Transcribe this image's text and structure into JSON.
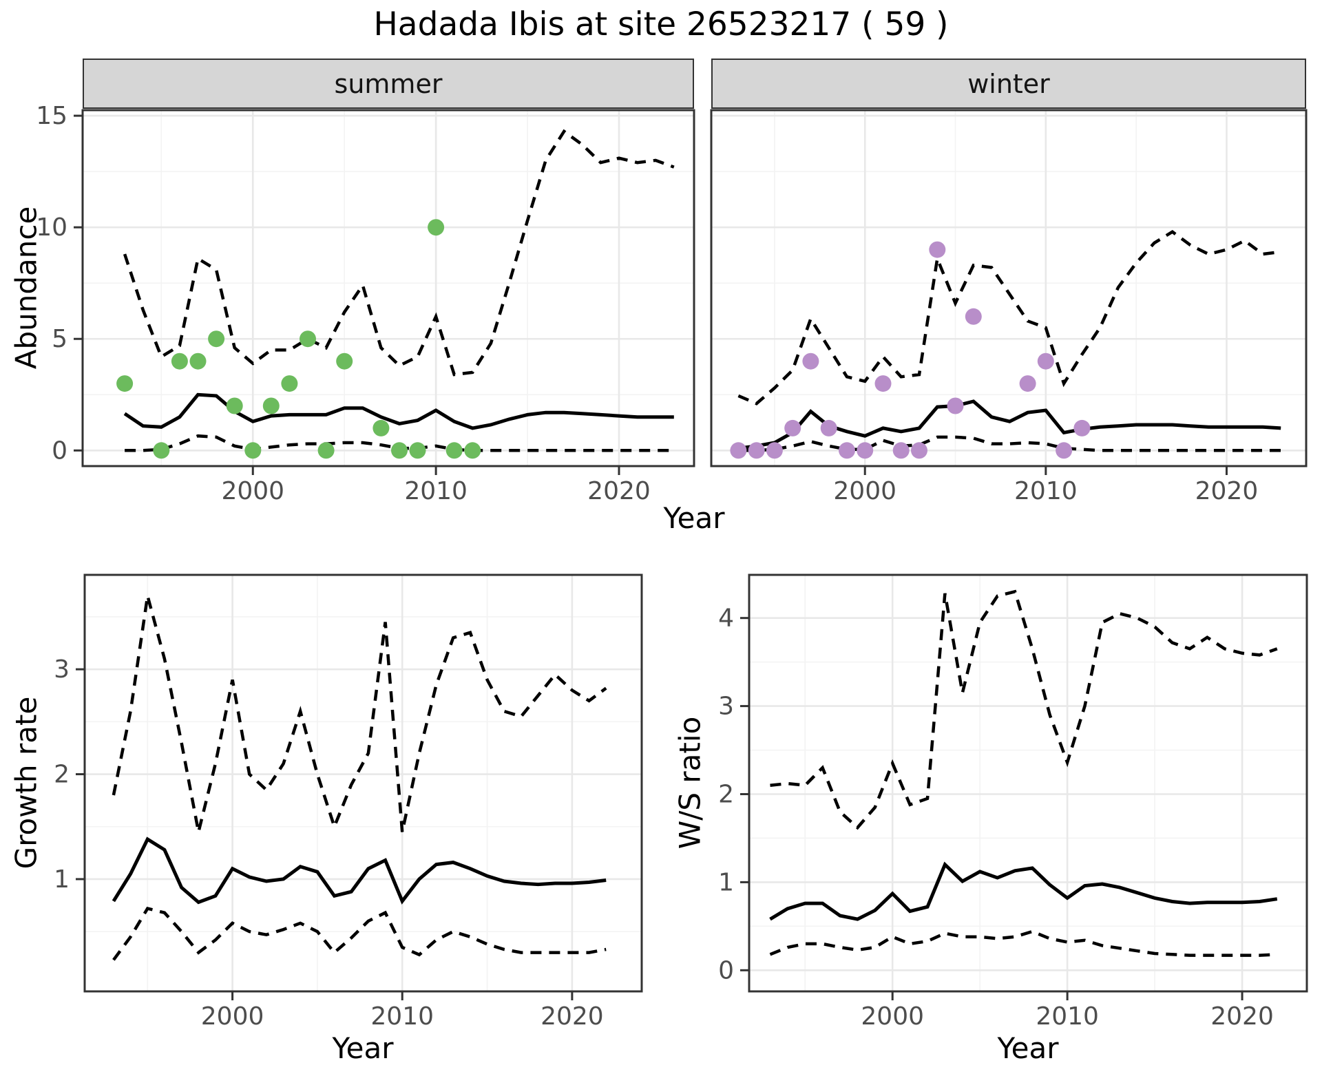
{
  "title": "Hadada Ibis at site 26523217 ( 59 )",
  "colors": {
    "summer_point": "#6cbb5d",
    "winter_point": "#b88ec9",
    "line": "#000000",
    "panel_border": "#333333",
    "grid_major": "#e8e8e8",
    "grid_minor": "#f3f3f3",
    "strip_background": "#d6d6d6",
    "tick_label": "#4d4d4d",
    "title_text": "#000000"
  },
  "top_row": {
    "facets": [
      "summer",
      "winter"
    ],
    "ylabel": "Abundance",
    "xlabel": "Year",
    "yticks": [
      0,
      5,
      10,
      15
    ],
    "xticks": [
      2000,
      2010,
      2020
    ]
  },
  "bottom_left": {
    "ylabel": "Growth rate",
    "xlabel": "Year",
    "yticks": [
      1,
      2,
      3
    ],
    "xticks": [
      2000,
      2010,
      2020
    ]
  },
  "bottom_right": {
    "ylabel": "W/S ratio",
    "xlabel": "Year",
    "yticks": [
      0,
      1,
      2,
      3,
      4
    ],
    "xticks": [
      2000,
      2010,
      2020
    ]
  },
  "chart_data": [
    {
      "id": "abundance-summer",
      "type": "line",
      "facet": "summer",
      "title": "Hadada Ibis at site 26523217 ( 59 )",
      "xlabel": "Year",
      "ylabel": "Abundance",
      "ylim": [
        0,
        15
      ],
      "years": [
        1993,
        1994,
        1995,
        1996,
        1997,
        1998,
        1999,
        2000,
        2001,
        2002,
        2003,
        2004,
        2005,
        2006,
        2007,
        2008,
        2009,
        2010,
        2011,
        2012,
        2013,
        2014,
        2015,
        2016,
        2017,
        2018,
        2019,
        2020,
        2021,
        2022,
        2023
      ],
      "series": [
        {
          "name": "median",
          "style": "solid",
          "values": [
            1.65,
            1.1,
            1.05,
            1.5,
            2.5,
            2.45,
            1.75,
            1.3,
            1.55,
            1.6,
            1.6,
            1.6,
            1.9,
            1.9,
            1.5,
            1.2,
            1.35,
            1.8,
            1.3,
            1.0,
            1.15,
            1.4,
            1.6,
            1.7,
            1.7,
            1.65,
            1.6,
            1.55,
            1.5,
            1.5,
            1.5
          ]
        },
        {
          "name": "ci_upper",
          "style": "dashed",
          "values": [
            8.8,
            6.3,
            4.2,
            4.7,
            8.6,
            8.1,
            4.6,
            3.9,
            4.5,
            4.5,
            5.0,
            4.6,
            6.2,
            7.4,
            4.6,
            3.8,
            4.2,
            6.0,
            3.4,
            3.5,
            4.8,
            7.5,
            10.3,
            13.0,
            14.3,
            13.7,
            12.9,
            13.1,
            12.9,
            13.0,
            12.7
          ]
        },
        {
          "name": "ci_lower",
          "style": "dashed",
          "values": [
            0,
            0,
            0.05,
            0.3,
            0.65,
            0.6,
            0.2,
            0.05,
            0.15,
            0.25,
            0.3,
            0.3,
            0.35,
            0.35,
            0.25,
            0.1,
            0.1,
            0.2,
            0.05,
            0,
            0,
            0,
            0,
            0,
            0,
            0,
            0,
            0,
            0,
            0,
            0
          ]
        }
      ],
      "points": {
        "name": "observed-summer",
        "color_key": "summer_point",
        "years": [
          1993,
          1995,
          1996,
          1997,
          1998,
          1999,
          2000,
          2001,
          2002,
          2003,
          2004,
          2005,
          2007,
          2008,
          2009,
          2010,
          2011,
          2012
        ],
        "values": [
          3,
          0,
          4,
          4,
          5,
          2,
          0,
          2,
          3,
          5,
          0,
          4,
          1,
          0,
          0,
          10,
          0,
          0
        ]
      }
    },
    {
      "id": "abundance-winter",
      "type": "line",
      "facet": "winter",
      "xlabel": "Year",
      "ylabel": "Abundance",
      "ylim": [
        0,
        15
      ],
      "years": [
        1993,
        1994,
        1995,
        1996,
        1997,
        1998,
        1999,
        2000,
        2001,
        2002,
        2003,
        2004,
        2005,
        2006,
        2007,
        2008,
        2009,
        2010,
        2011,
        2012,
        2013,
        2014,
        2015,
        2016,
        2017,
        2018,
        2019,
        2020,
        2021,
        2022,
        2023
      ],
      "series": [
        {
          "name": "median",
          "style": "solid",
          "values": [
            0.1,
            0.2,
            0.35,
            0.8,
            1.75,
            1.1,
            0.85,
            0.65,
            1.0,
            0.85,
            1.0,
            1.95,
            2.0,
            2.2,
            1.5,
            1.3,
            1.7,
            1.8,
            0.8,
            0.95,
            1.05,
            1.1,
            1.15,
            1.15,
            1.15,
            1.1,
            1.05,
            1.05,
            1.05,
            1.05,
            1.0
          ]
        },
        {
          "name": "ci_upper",
          "style": "dashed",
          "values": [
            2.45,
            2.1,
            2.8,
            3.6,
            5.9,
            4.6,
            3.3,
            3.1,
            4.2,
            3.3,
            3.4,
            8.6,
            6.6,
            8.3,
            8.2,
            7.0,
            5.8,
            5.5,
            3.0,
            4.3,
            5.5,
            7.3,
            8.4,
            9.3,
            9.8,
            9.2,
            8.8,
            9.0,
            9.4,
            8.8,
            8.9
          ]
        },
        {
          "name": "ci_lower",
          "style": "dashed",
          "values": [
            0,
            0,
            0.05,
            0.2,
            0.4,
            0.2,
            0.05,
            0.05,
            0.45,
            0.2,
            0.25,
            0.6,
            0.6,
            0.55,
            0.3,
            0.3,
            0.35,
            0.3,
            0.1,
            0.05,
            0,
            0,
            0,
            0,
            0,
            0,
            0,
            0,
            0,
            0,
            0
          ]
        }
      ],
      "points": {
        "name": "observed-winter",
        "color_key": "winter_point",
        "years": [
          1993,
          1994,
          1995,
          1996,
          1997,
          1998,
          1999,
          2000,
          2001,
          2002,
          2003,
          2004,
          2005,
          2006,
          2009,
          2010,
          2011,
          2012
        ],
        "values": [
          0,
          0,
          0,
          1,
          4,
          1,
          0,
          0,
          3,
          0,
          0,
          9,
          2,
          6,
          3,
          4,
          0,
          1
        ]
      }
    },
    {
      "id": "growth-rate",
      "type": "line",
      "xlabel": "Year",
      "ylabel": "Growth rate",
      "ylim": [
        0,
        3.9
      ],
      "years": [
        1993,
        1994,
        1995,
        1996,
        1997,
        1998,
        1999,
        2000,
        2001,
        2002,
        2003,
        2004,
        2005,
        2006,
        2007,
        2008,
        2009,
        2010,
        2011,
        2012,
        2013,
        2014,
        2015,
        2016,
        2017,
        2018,
        2019,
        2020,
        2021,
        2022
      ],
      "series": [
        {
          "name": "median",
          "style": "solid",
          "values": [
            0.79,
            1.05,
            1.38,
            1.28,
            0.92,
            0.78,
            0.84,
            1.1,
            1.02,
            0.98,
            1.0,
            1.12,
            1.07,
            0.84,
            0.88,
            1.1,
            1.18,
            0.79,
            1.0,
            1.14,
            1.16,
            1.1,
            1.03,
            0.98,
            0.96,
            0.95,
            0.96,
            0.96,
            0.97,
            0.99
          ]
        },
        {
          "name": "ci_upper",
          "style": "dashed",
          "values": [
            1.8,
            2.6,
            3.7,
            3.1,
            2.3,
            1.45,
            2.1,
            2.9,
            2.0,
            1.85,
            2.1,
            2.6,
            2.0,
            1.5,
            1.9,
            2.2,
            3.45,
            1.45,
            2.2,
            2.85,
            3.3,
            3.35,
            2.9,
            2.6,
            2.55,
            2.75,
            2.95,
            2.8,
            2.7,
            2.82
          ]
        },
        {
          "name": "ci_lower",
          "style": "dashed",
          "values": [
            0.23,
            0.45,
            0.72,
            0.68,
            0.5,
            0.3,
            0.42,
            0.58,
            0.5,
            0.47,
            0.52,
            0.58,
            0.5,
            0.3,
            0.44,
            0.6,
            0.68,
            0.35,
            0.28,
            0.42,
            0.5,
            0.45,
            0.38,
            0.33,
            0.3,
            0.3,
            0.3,
            0.3,
            0.3,
            0.33
          ]
        }
      ]
    },
    {
      "id": "ws-ratio",
      "type": "line",
      "xlabel": "Year",
      "ylabel": "W/S ratio",
      "ylim": [
        0,
        4.45
      ],
      "years": [
        1993,
        1994,
        1995,
        1996,
        1997,
        1998,
        1999,
        2000,
        2001,
        2002,
        2003,
        2004,
        2005,
        2006,
        2007,
        2008,
        2009,
        2010,
        2011,
        2012,
        2013,
        2014,
        2015,
        2016,
        2017,
        2018,
        2019,
        2020,
        2021,
        2022
      ],
      "series": [
        {
          "name": "median",
          "style": "solid",
          "values": [
            0.58,
            0.7,
            0.76,
            0.76,
            0.62,
            0.58,
            0.68,
            0.87,
            0.67,
            0.72,
            1.2,
            1.01,
            1.12,
            1.05,
            1.13,
            1.16,
            0.97,
            0.82,
            0.96,
            0.98,
            0.94,
            0.88,
            0.82,
            0.78,
            0.76,
            0.77,
            0.77,
            0.77,
            0.78,
            0.81
          ]
        },
        {
          "name": "ci_upper",
          "style": "dashed",
          "values": [
            2.1,
            2.12,
            2.1,
            2.3,
            1.8,
            1.62,
            1.85,
            2.35,
            1.88,
            1.95,
            4.28,
            3.15,
            3.95,
            4.25,
            4.3,
            3.65,
            2.9,
            2.36,
            3.0,
            3.95,
            4.05,
            4.0,
            3.9,
            3.72,
            3.65,
            3.78,
            3.65,
            3.6,
            3.58,
            3.65
          ]
        },
        {
          "name": "ci_lower",
          "style": "dashed",
          "values": [
            0.18,
            0.26,
            0.3,
            0.3,
            0.26,
            0.23,
            0.26,
            0.38,
            0.3,
            0.33,
            0.42,
            0.38,
            0.38,
            0.36,
            0.38,
            0.44,
            0.36,
            0.32,
            0.34,
            0.28,
            0.25,
            0.22,
            0.19,
            0.18,
            0.17,
            0.17,
            0.17,
            0.17,
            0.17,
            0.18
          ]
        }
      ]
    }
  ]
}
